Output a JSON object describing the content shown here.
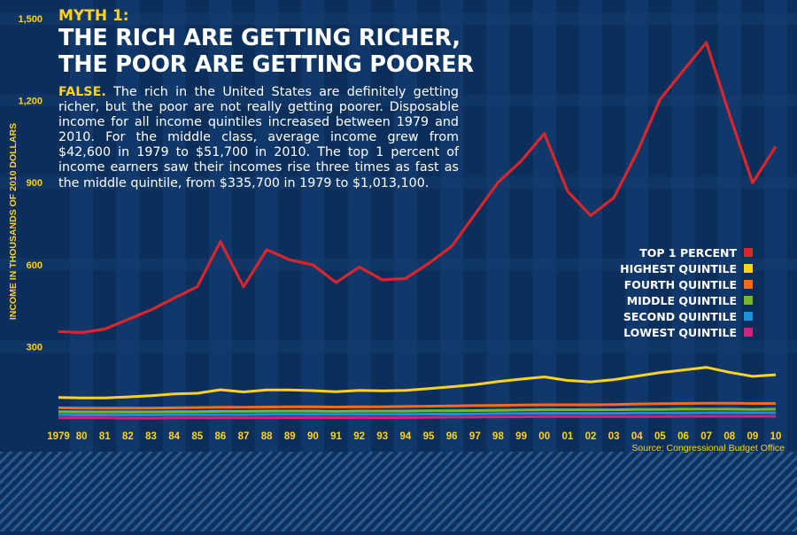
{
  "header": {
    "myth_label": "MYTH 1:",
    "headline_line1": "THE RICH ARE GETTING RICHER,",
    "headline_line2": "THE POOR ARE GETTING POORER"
  },
  "body": {
    "lead": "FALSE.",
    "text": " The rich in the United States are definitely getting richer, but the poor are not really getting poorer. Disposable income for all income quintiles increased between 1979 and 2010. For the middle class, average income grew from $42,600 in 1979 to $51,700 in 2010. The top 1 percent of income earners saw their incomes rise three times as fast as the middle quintile, from $335,700 in 1979 to $1,013,100."
  },
  "source": "Source: Congressional Budget Office",
  "colors": {
    "accent_yellow": "#ffd21f",
    "background": "#0b2f5a"
  },
  "chart_data": {
    "type": "line",
    "title": "",
    "xlabel": "",
    "ylabel": "INCOME IN THOUSANDS OF 2010 DOLLARS",
    "ylim": [
      0,
      1500
    ],
    "yticks": [
      "300",
      "600",
      "900",
      "1,200",
      "1,500"
    ],
    "ytick_values": [
      300,
      600,
      900,
      1200,
      1500
    ],
    "x": [
      "1979",
      "80",
      "81",
      "82",
      "83",
      "84",
      "85",
      "86",
      "87",
      "88",
      "89",
      "90",
      "91",
      "92",
      "93",
      "94",
      "95",
      "96",
      "97",
      "98",
      "99",
      "00",
      "01",
      "02",
      "03",
      "04",
      "05",
      "06",
      "07",
      "08",
      "09",
      "10"
    ],
    "series": [
      {
        "name": "TOP 1 PERCENT",
        "color": "#d9262c",
        "values": [
          336,
          332,
          345,
          380,
          415,
          458,
          500,
          665,
          500,
          635,
          598,
          580,
          515,
          572,
          525,
          530,
          585,
          648,
          765,
          882,
          960,
          1060,
          850,
          760,
          825,
          990,
          1185,
          1290,
          1393,
          1130,
          880,
          1013
        ]
      },
      {
        "name": "HIGHEST QUINTILE",
        "color": "#ffd21f",
        "values": [
          95,
          93,
          93,
          97,
          101,
          108,
          110,
          123,
          115,
          122,
          122,
          120,
          116,
          121,
          119,
          121,
          127,
          134,
          142,
          153,
          162,
          170,
          157,
          152,
          160,
          173,
          186,
          195,
          205,
          187,
          172,
          178
        ]
      },
      {
        "name": "FOURTH QUINTILE",
        "color": "#f26b21",
        "values": [
          57,
          56,
          56,
          56,
          56,
          57,
          58,
          59,
          59,
          60,
          61,
          61,
          60,
          61,
          61,
          62,
          63,
          64,
          65,
          66,
          67,
          68,
          68,
          68,
          69,
          71,
          72,
          73,
          74,
          74,
          73,
          73
        ]
      },
      {
        "name": "MIDDLE QUINTILE",
        "color": "#7ab829",
        "values": [
          43,
          42,
          42,
          42,
          42,
          43,
          43,
          44,
          44,
          45,
          45,
          45,
          44,
          45,
          45,
          45,
          46,
          46,
          47,
          48,
          49,
          50,
          50,
          50,
          50,
          51,
          51,
          52,
          52,
          52,
          51,
          52
        ]
      },
      {
        "name": "SECOND QUINTILE",
        "color": "#1e90d8",
        "values": [
          32,
          31,
          31,
          31,
          31,
          32,
          32,
          32,
          32,
          33,
          33,
          33,
          33,
          33,
          33,
          33,
          34,
          34,
          35,
          36,
          36,
          37,
          37,
          37,
          37,
          38,
          38,
          38,
          39,
          39,
          39,
          39
        ]
      },
      {
        "name": "LOWEST QUINTILE",
        "color": "#d4217f",
        "values": [
          20,
          20,
          20,
          19,
          19,
          20,
          20,
          20,
          20,
          20,
          21,
          21,
          21,
          21,
          21,
          21,
          22,
          23,
          23,
          24,
          24,
          25,
          25,
          25,
          25,
          25,
          25,
          26,
          26,
          26,
          26,
          26
        ]
      }
    ],
    "legend_position": "right-middle",
    "grid": true
  }
}
